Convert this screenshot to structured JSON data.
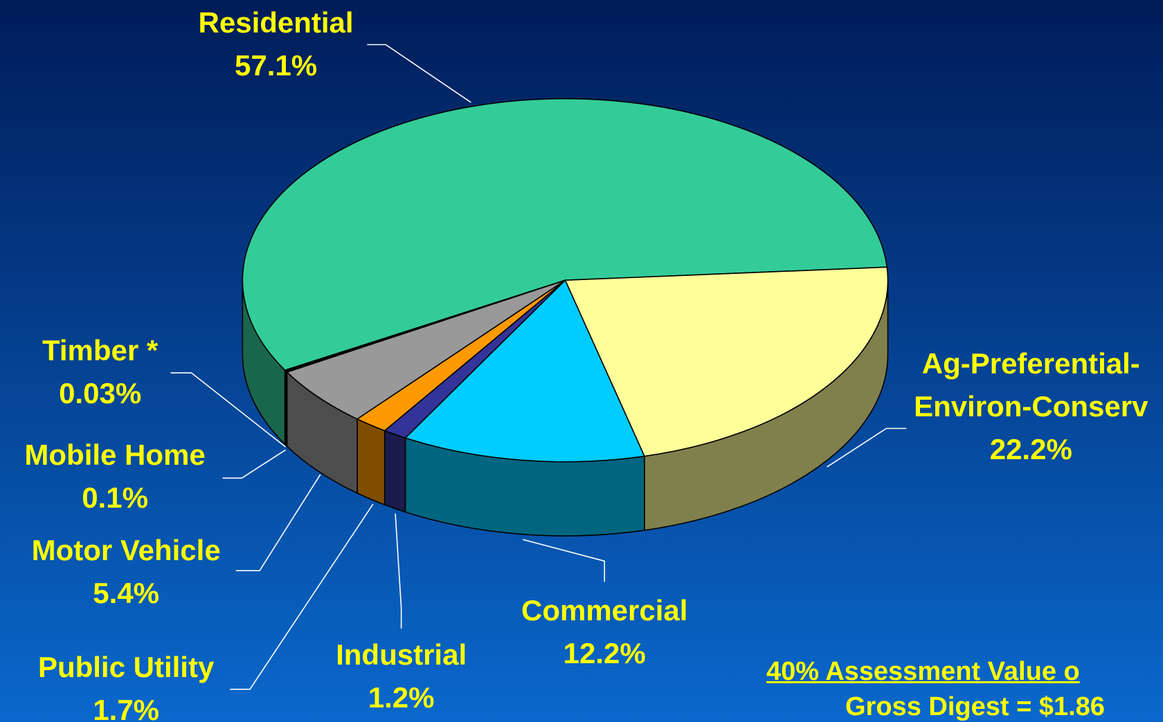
{
  "chart_data": {
    "type": "pie",
    "categories": [
      "Residential",
      "Ag-Preferential-Environ-Conserv",
      "Commercial",
      "Industrial",
      "Public Utility",
      "Motor Vehicle",
      "Mobile Home",
      "Timber *"
    ],
    "values": [
      57.1,
      22.2,
      12.2,
      1.2,
      1.7,
      5.4,
      0.1,
      0.03
    ],
    "value_labels": [
      "57.1%",
      "22.2%",
      "12.2%",
      "1.2%",
      "1.7%",
      "5.4%",
      "0.1%",
      "0.03%"
    ],
    "colors": [
      "#33cc99",
      "#ffff99",
      "#00ccff",
      "#333399",
      "#ff9900",
      "#999999",
      "#666666",
      "#009999"
    ],
    "footnote": [
      "40% Assessment Value o",
      "Gross Digest = $1.86"
    ]
  }
}
